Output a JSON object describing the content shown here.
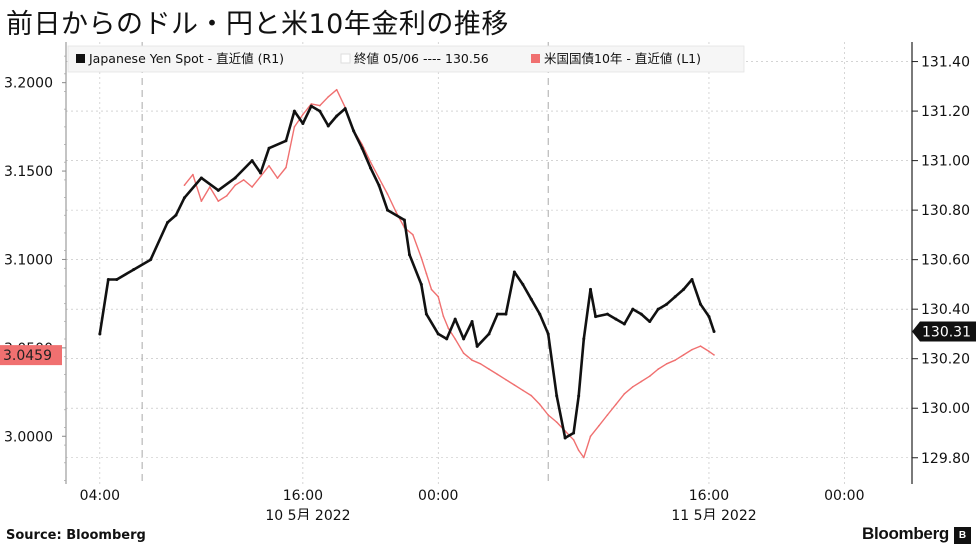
{
  "title": "前日からのドル・円と米10年金利の推移",
  "footer": {
    "source": "Source:  Bloomberg",
    "brand": "Bloomberg",
    "brand_mark": "B"
  },
  "colors": {
    "yen_series": "#111111",
    "yield_series": "#f07070",
    "yield_badge": "#f07070",
    "yen_badge": "#111111",
    "grid": "#bbbbbb"
  },
  "chart_data": {
    "type": "line",
    "legend_position": "top-left",
    "legend": [
      {
        "text": "Japanese Yen Spot - 直近値 (R1)",
        "icon": "black-square-icon"
      },
      {
        "text": "終値 05/06 ---- 130.56",
        "icon": "white-square-icon"
      },
      {
        "text": "米国国債10年 - 直近値 (L1)",
        "icon": "red-square-icon"
      }
    ],
    "x_ticks": [
      {
        "t": 4,
        "label": "04:00"
      },
      {
        "t": 16,
        "label": "16:00"
      },
      {
        "t": 24,
        "label": "00:00"
      },
      {
        "t": 40,
        "label": "16:00"
      },
      {
        "t": 48,
        "label": "00:00"
      }
    ],
    "date_labels": [
      {
        "t": 16.3,
        "label": "10 5月  2022"
      },
      {
        "t": 40.3,
        "label": "11 5月  2022"
      }
    ],
    "x_range": [
      2,
      52
    ],
    "day_dividers": [
      6.5,
      30.5
    ],
    "left_axis": {
      "range": [
        2.973,
        3.223
      ],
      "ticks": [
        3.2,
        3.15,
        3.1,
        3.05,
        3.0
      ],
      "labels": [
        "3.2000",
        "3.1500",
        "3.1000",
        "3.0500",
        "3.0000"
      ]
    },
    "right_axis": {
      "range": [
        129.694,
        131.479
      ],
      "ticks": [
        131.4,
        131.2,
        131.0,
        130.8,
        130.6,
        130.4,
        130.2,
        130.0,
        129.8
      ],
      "labels": [
        "131.40",
        "131.20",
        "131.00",
        "130.80",
        "130.60",
        "130.40",
        "130.20",
        "130.00",
        "129.80"
      ]
    },
    "last_values": {
      "yield": "3.0459",
      "yen": "130.31"
    },
    "series": [
      {
        "name": "Japanese Yen Spot - 直近値 (R1)",
        "axis": "right",
        "x": [
          4,
          4.5,
          5,
          6,
          7,
          8,
          8.5,
          9,
          10,
          11,
          12,
          13,
          13.5,
          14,
          15,
          15.5,
          16,
          16.5,
          17,
          17.5,
          18,
          18.5,
          19,
          19.5,
          20,
          20.5,
          21,
          22,
          22.3,
          23,
          23.3,
          24,
          24.5,
          25,
          25.5,
          26,
          26.3,
          27,
          27.5,
          28,
          28.5,
          29,
          29.5,
          30,
          30.5,
          31,
          31.5,
          32,
          32.3,
          32.6,
          33,
          33.3,
          34,
          34.5,
          35,
          35.5,
          36,
          36.5,
          37,
          37.5,
          38,
          38.5,
          39,
          39.5,
          40,
          40.3
        ],
        "y": [
          130.3,
          130.52,
          130.52,
          130.56,
          130.6,
          130.75,
          130.78,
          130.85,
          130.93,
          130.88,
          130.93,
          131.0,
          130.95,
          131.05,
          131.08,
          131.2,
          131.15,
          131.22,
          131.2,
          131.14,
          131.18,
          131.21,
          131.12,
          131.05,
          130.97,
          130.9,
          130.8,
          130.76,
          130.62,
          130.5,
          130.38,
          130.3,
          130.28,
          130.36,
          130.28,
          130.35,
          130.25,
          130.3,
          130.38,
          130.38,
          130.55,
          130.5,
          130.44,
          130.38,
          130.3,
          130.05,
          129.88,
          129.9,
          130.05,
          130.28,
          130.48,
          130.37,
          130.38,
          130.36,
          130.34,
          130.4,
          130.38,
          130.35,
          130.4,
          130.42,
          130.45,
          130.48,
          130.52,
          130.42,
          130.37,
          130.31
        ]
      },
      {
        "name": "米国国債10年 - 直近値 (L1)",
        "axis": "left",
        "x": [
          9,
          9.5,
          10,
          10.5,
          11,
          11.5,
          12,
          12.5,
          13,
          13.5,
          14,
          14.5,
          15,
          15.5,
          16,
          16.5,
          17,
          17.5,
          18,
          18.5,
          19,
          19.5,
          20,
          20.5,
          21,
          21.5,
          22,
          22.5,
          23,
          23.3,
          23.6,
          24,
          24.3,
          24.6,
          25,
          25.5,
          26,
          26.5,
          27,
          27.5,
          28,
          28.5,
          29,
          29.5,
          30,
          30.5,
          31,
          31.5,
          32,
          32.3,
          32.6,
          33,
          33.5,
          34,
          34.5,
          35,
          35.5,
          36,
          36.5,
          37,
          37.5,
          38,
          38.5,
          39,
          39.5,
          40,
          40.3
        ],
        "y": [
          3.142,
          3.148,
          3.133,
          3.141,
          3.133,
          3.136,
          3.142,
          3.145,
          3.141,
          3.147,
          3.153,
          3.146,
          3.152,
          3.175,
          3.182,
          3.188,
          3.187,
          3.192,
          3.196,
          3.186,
          3.173,
          3.165,
          3.155,
          3.146,
          3.137,
          3.127,
          3.118,
          3.114,
          3.101,
          3.092,
          3.083,
          3.079,
          3.068,
          3.061,
          3.055,
          3.047,
          3.043,
          3.041,
          3.038,
          3.035,
          3.032,
          3.029,
          3.026,
          3.023,
          3.018,
          3.012,
          3.008,
          3.003,
          2.998,
          2.992,
          2.988,
          3.0,
          3.006,
          3.012,
          3.018,
          3.024,
          3.028,
          3.031,
          3.034,
          3.038,
          3.041,
          3.043,
          3.046,
          3.049,
          3.051,
          3.048,
          3.046
        ]
      }
    ]
  }
}
